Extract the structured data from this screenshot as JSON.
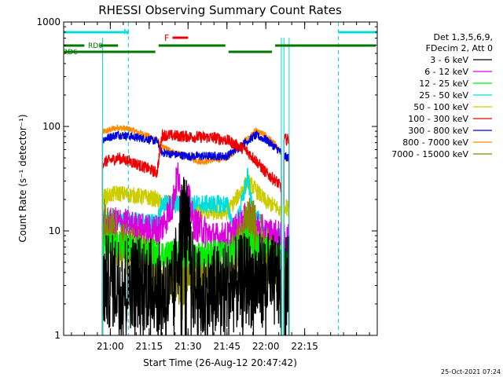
{
  "footer_timestamp": "25-Oct-2021 07:24",
  "chart_data": {
    "type": "line",
    "title": "RHESSI Observing Summary Count Rates",
    "xlabel": "Start Time (26-Aug-12 20:47:42)",
    "ylabel": "Count Rate (s⁻¹ detector⁻¹)",
    "yscale": "log",
    "ylim": [
      1,
      1000
    ],
    "xlim_minutes": [
      -18,
      103
    ],
    "x_tick_labels": [
      "21:00",
      "21:15",
      "21:30",
      "21:45",
      "22:00",
      "22:15"
    ],
    "x_tick_minutes": [
      0,
      15,
      30,
      45,
      60,
      75
    ],
    "y_tick_labels": [
      "1",
      "10",
      "100",
      "1000"
    ],
    "y_tick_values": [
      1,
      10,
      100,
      1000
    ],
    "grid": false,
    "legend_position": "right",
    "legend_header": [
      "Det 1,3,5,6,9,",
      "FDecim 2, Att 0"
    ],
    "legend": [
      {
        "label": "3 - 6 keV",
        "color": "#000000"
      },
      {
        "label": "6 - 12 keV",
        "color": "#dd00dd"
      },
      {
        "label": "12 - 25 keV",
        "color": "#00ee00"
      },
      {
        "label": "25 - 50 keV",
        "color": "#00dddd"
      },
      {
        "label": "50 - 100 keV",
        "color": "#cccc00"
      },
      {
        "label": "100 - 300 keV",
        "color": "#ee0000"
      },
      {
        "label": "300 - 800 keV",
        "color": "#0000dd"
      },
      {
        "label": "800 - 7000 keV",
        "color": "#ff8800"
      },
      {
        "label": "7000 - 15000 keV",
        "color": "#888800"
      }
    ],
    "flag_labels": {
      "night": "N",
      "flare": "F",
      "rd0": "RD0",
      "rd6": "RD6"
    },
    "night_intervals": [
      [
        -18,
        7
      ],
      [
        88,
        103
      ]
    ],
    "night_edges": [
      7,
      88
    ],
    "data_gaps": [
      [
        -18,
        -3
      ],
      [
        66,
        67
      ],
      [
        69,
        103
      ]
    ],
    "saa_boundaries": [
      18,
      45,
      63
    ],
    "flare_interval": [
      24,
      30
    ],
    "rd0_intervals": [
      [
        -18,
        -10
      ],
      [
        -4,
        3
      ]
    ],
    "rd6_intervals": [
      [
        -18,
        18
      ],
      [
        18,
        45
      ],
      [
        45,
        63
      ],
      [
        63,
        103
      ]
    ],
    "series": [
      {
        "name": "800 - 7000 keV",
        "color": "#ff8800",
        "profile": [
          [
            -3,
            88
          ],
          [
            3,
            98
          ],
          [
            8,
            93
          ],
          [
            14,
            82
          ],
          [
            18,
            74
          ],
          [
            20,
            64
          ],
          [
            25,
            56
          ],
          [
            35,
            46
          ],
          [
            45,
            50
          ],
          [
            52,
            72
          ],
          [
            56,
            90
          ],
          [
            60,
            82
          ],
          [
            64,
            66
          ],
          [
            66,
            55
          ],
          [
            67,
            52
          ],
          [
            69,
            48
          ]
        ]
      },
      {
        "name": "300 - 800 keV",
        "color": "#0000dd",
        "profile": [
          [
            -3,
            75
          ],
          [
            3,
            84
          ],
          [
            8,
            80
          ],
          [
            14,
            76
          ],
          [
            18,
            72
          ],
          [
            20,
            56
          ],
          [
            30,
            52
          ],
          [
            40,
            52
          ],
          [
            45,
            52
          ],
          [
            52,
            70
          ],
          [
            56,
            82
          ],
          [
            60,
            75
          ],
          [
            64,
            62
          ],
          [
            66,
            56
          ],
          [
            67,
            52
          ],
          [
            69,
            50
          ]
        ]
      },
      {
        "name": "100 - 300 keV",
        "color": "#ee0000",
        "profile": [
          [
            -3,
            45
          ],
          [
            3,
            50
          ],
          [
            8,
            46
          ],
          [
            14,
            40
          ],
          [
            18,
            36
          ],
          [
            20,
            83
          ],
          [
            30,
            80
          ],
          [
            40,
            78
          ],
          [
            45,
            74
          ],
          [
            52,
            60
          ],
          [
            56,
            48
          ],
          [
            60,
            36
          ],
          [
            64,
            30
          ],
          [
            66,
            26
          ],
          [
            67,
            75
          ],
          [
            69,
            75
          ]
        ]
      },
      {
        "name": "50 - 100 keV",
        "color": "#cccc00",
        "profile": [
          [
            -3,
            21
          ],
          [
            3,
            23
          ],
          [
            8,
            22
          ],
          [
            14,
            21
          ],
          [
            18,
            20
          ],
          [
            20,
            18
          ],
          [
            25,
            19
          ],
          [
            30,
            16
          ],
          [
            40,
            15
          ],
          [
            45,
            15
          ],
          [
            50,
            23
          ],
          [
            53,
            30
          ],
          [
            56,
            25
          ],
          [
            60,
            19
          ],
          [
            64,
            17
          ],
          [
            66,
            15
          ],
          [
            67,
            18
          ],
          [
            69,
            16
          ]
        ]
      },
      {
        "name": "25 - 50 keV",
        "color": "#00dddd",
        "profile": [
          [
            -3,
            13
          ],
          [
            3,
            13
          ],
          [
            8,
            12.5
          ],
          [
            14,
            12
          ],
          [
            18,
            12
          ],
          [
            20,
            18
          ],
          [
            30,
            18
          ],
          [
            40,
            18
          ],
          [
            45,
            18
          ],
          [
            48,
            10
          ],
          [
            51,
            20
          ],
          [
            53,
            33
          ],
          [
            55,
            15
          ],
          [
            60,
            10
          ],
          [
            64,
            9
          ],
          [
            66,
            8.5
          ],
          [
            67,
            7
          ],
          [
            69,
            6.5
          ]
        ]
      },
      {
        "name": "6 - 12 keV",
        "color": "#dd00dd",
        "profile": [
          [
            -3,
            11
          ],
          [
            3,
            12
          ],
          [
            8,
            11
          ],
          [
            14,
            10
          ],
          [
            18,
            10
          ],
          [
            20,
            11
          ],
          [
            24,
            18
          ],
          [
            26,
            35
          ],
          [
            28,
            14
          ],
          [
            30,
            22
          ],
          [
            32,
            12
          ],
          [
            40,
            8.5
          ],
          [
            45,
            8.5
          ],
          [
            50,
            11
          ],
          [
            53,
            14
          ],
          [
            56,
            11
          ],
          [
            60,
            9.5
          ],
          [
            64,
            9
          ],
          [
            66,
            8.5
          ],
          [
            67,
            8.5
          ],
          [
            69,
            8
          ]
        ]
      },
      {
        "name": "7000 - 15000 keV",
        "color": "#888800",
        "profile": [
          [
            -3,
            12
          ],
          [
            0,
            10
          ],
          [
            3,
            8
          ],
          [
            8,
            6
          ],
          [
            14,
            5
          ],
          [
            18,
            4.5
          ],
          [
            20,
            3.5
          ],
          [
            30,
            3.5
          ],
          [
            40,
            3.5
          ],
          [
            45,
            4
          ],
          [
            50,
            7
          ],
          [
            54,
            12
          ],
          [
            58,
            8
          ],
          [
            62,
            5
          ],
          [
            64,
            4
          ],
          [
            66,
            3.5
          ],
          [
            67,
            3.5
          ],
          [
            69,
            3
          ]
        ]
      },
      {
        "name": "12 - 25 keV",
        "color": "#00ee00",
        "profile": [
          [
            -3,
            7
          ],
          [
            3,
            7.2
          ],
          [
            8,
            6.8
          ],
          [
            14,
            6.3
          ],
          [
            18,
            6
          ],
          [
            20,
            6
          ],
          [
            30,
            6
          ],
          [
            40,
            6
          ],
          [
            45,
            6
          ],
          [
            50,
            7
          ],
          [
            53,
            8
          ],
          [
            56,
            7
          ],
          [
            60,
            6.5
          ],
          [
            64,
            5.5
          ],
          [
            66,
            5.5
          ],
          [
            67,
            5.5
          ],
          [
            69,
            5.2
          ]
        ]
      },
      {
        "name": "3 - 6 keV",
        "color": "#000000",
        "profile": [
          [
            -3,
            3.2
          ],
          [
            3,
            3.3
          ],
          [
            8,
            3.3
          ],
          [
            14,
            3.2
          ],
          [
            18,
            3
          ],
          [
            20,
            2.5
          ],
          [
            24,
            2.3
          ],
          [
            26,
            6
          ],
          [
            28,
            15
          ],
          [
            30,
            10
          ],
          [
            32,
            3
          ],
          [
            35,
            2.2
          ],
          [
            40,
            2.6
          ],
          [
            45,
            2.8
          ],
          [
            50,
            3.2
          ],
          [
            53,
            3.5
          ],
          [
            56,
            3.2
          ],
          [
            60,
            3.5
          ],
          [
            64,
            3.2
          ],
          [
            66,
            3
          ],
          [
            67,
            3.5
          ],
          [
            69,
            3.2
          ]
        ]
      }
    ]
  }
}
